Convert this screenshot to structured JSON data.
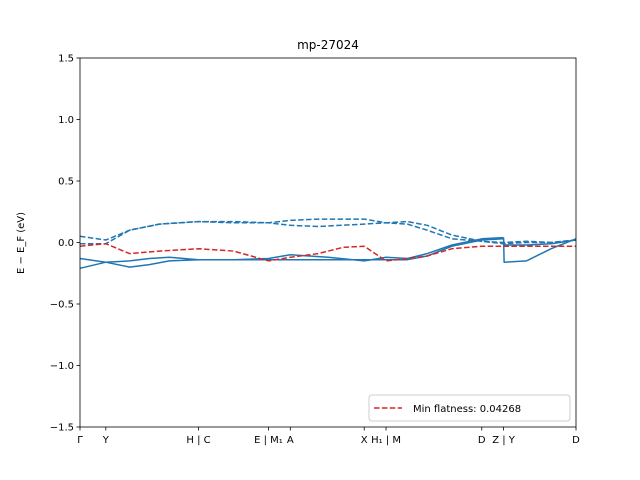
{
  "chart_data": {
    "type": "line",
    "title": "mp-27024",
    "ylabel": "E − E_F (eV)",
    "xlim": [
      0,
      10
    ],
    "ylim": [
      -1.5,
      1.5
    ],
    "yticks": [
      -1.5,
      -1.0,
      -0.5,
      0.0,
      0.5,
      1.0,
      1.5
    ],
    "ytick_labels": [
      "−1.5",
      "−1.0",
      "−0.5",
      "0.0",
      "0.5",
      "1.0",
      "1.5"
    ],
    "xticks": [
      {
        "x": 0.0,
        "label": "Γ"
      },
      {
        "x": 0.52,
        "label": "Y"
      },
      {
        "x": 2.39,
        "label": "H | C"
      },
      {
        "x": 3.8,
        "label": "E | M₁"
      },
      {
        "x": 4.24,
        "label": "A"
      },
      {
        "x": 5.73,
        "label": "X"
      },
      {
        "x": 6.17,
        "label": "H₁ | M"
      },
      {
        "x": 8.1,
        "label": "D"
      },
      {
        "x": 8.54,
        "label": "Z | Y"
      },
      {
        "x": 10.0,
        "label": "D"
      }
    ],
    "series": [
      {
        "style": "solid",
        "color": "#1f77b4",
        "x": [
          0,
          0.52,
          1.0,
          1.4,
          1.8,
          2.39,
          3.1,
          3.8,
          4.24,
          5.0,
          5.73,
          6.17,
          6.6,
          7.0,
          7.5,
          8.1,
          8.54
        ],
        "y": [
          -0.13,
          -0.16,
          -0.2,
          -0.18,
          -0.15,
          -0.14,
          -0.14,
          -0.14,
          -0.14,
          -0.14,
          -0.14,
          -0.14,
          -0.14,
          -0.11,
          -0.03,
          0.02,
          0.03
        ]
      },
      {
        "style": "solid",
        "color": "#1f77b4",
        "x": [
          0,
          0.52,
          1.0,
          1.4,
          1.8,
          2.39,
          3.1,
          3.8,
          4.24,
          5.0,
          5.73,
          6.17,
          6.6,
          7.0,
          7.5,
          8.1,
          8.54
        ],
        "y": [
          -0.21,
          -0.16,
          -0.15,
          -0.13,
          -0.12,
          -0.14,
          -0.14,
          -0.13,
          -0.1,
          -0.12,
          -0.15,
          -0.12,
          -0.13,
          -0.09,
          -0.02,
          0.03,
          0.04
        ]
      },
      {
        "style": "solid",
        "color": "#1f77b4",
        "x": [
          8.54,
          8.55,
          9.0,
          9.5,
          10.0
        ],
        "y": [
          0.04,
          -0.16,
          -0.15,
          -0.05,
          0.03
        ]
      },
      {
        "style": "solid",
        "color": "#1f77b4",
        "x": [
          8.54,
          9.0,
          9.5,
          10.0
        ],
        "y": [
          -0.02,
          -0.02,
          -0.01,
          0.02
        ]
      },
      {
        "style": "dashed",
        "color": "#1f77b4",
        "x": [
          0,
          0.52,
          1.0,
          1.6,
          2.39,
          3.1,
          3.8,
          4.24,
          4.8,
          5.73,
          6.17,
          6.6,
          7.0,
          7.5,
          8.1,
          8.54,
          9.0,
          9.5,
          10.0
        ],
        "y": [
          0.05,
          0.02,
          0.1,
          0.15,
          0.17,
          0.17,
          0.16,
          0.18,
          0.19,
          0.19,
          0.16,
          0.17,
          0.14,
          0.06,
          0.01,
          -0.01,
          0.0,
          0.0,
          0.02
        ]
      },
      {
        "style": "dashed",
        "color": "#1f77b4",
        "x": [
          0,
          0.52,
          1.0,
          1.6,
          2.39,
          3.1,
          3.8,
          4.24,
          4.8,
          5.73,
          6.17,
          6.6,
          7.0,
          7.5,
          8.1,
          8.54,
          9.0,
          9.5,
          10.0
        ],
        "y": [
          -0.01,
          -0.01,
          0.1,
          0.15,
          0.17,
          0.16,
          0.16,
          0.14,
          0.13,
          0.15,
          0.16,
          0.15,
          0.1,
          0.03,
          0.01,
          0.0,
          0.01,
          0.0,
          0.02
        ]
      },
      {
        "style": "dashed",
        "color": "#d62728",
        "x": [
          0,
          0.52,
          1.0,
          1.6,
          2.39,
          3.1,
          3.8,
          4.24,
          4.8,
          5.3,
          5.73,
          6.17,
          6.6,
          7.0,
          7.5,
          8.1,
          8.54,
          9.0,
          9.5,
          10.0
        ],
        "y": [
          -0.03,
          -0.01,
          -0.09,
          -0.07,
          -0.05,
          -0.07,
          -0.15,
          -0.12,
          -0.09,
          -0.04,
          -0.03,
          -0.15,
          -0.13,
          -0.11,
          -0.05,
          -0.03,
          -0.03,
          -0.03,
          -0.03,
          -0.03
        ]
      }
    ],
    "legend": {
      "label": "Min flatness: 0.04268",
      "style": "dashed",
      "color": "#d62728",
      "placement": "lower-right"
    },
    "grid": false
  }
}
